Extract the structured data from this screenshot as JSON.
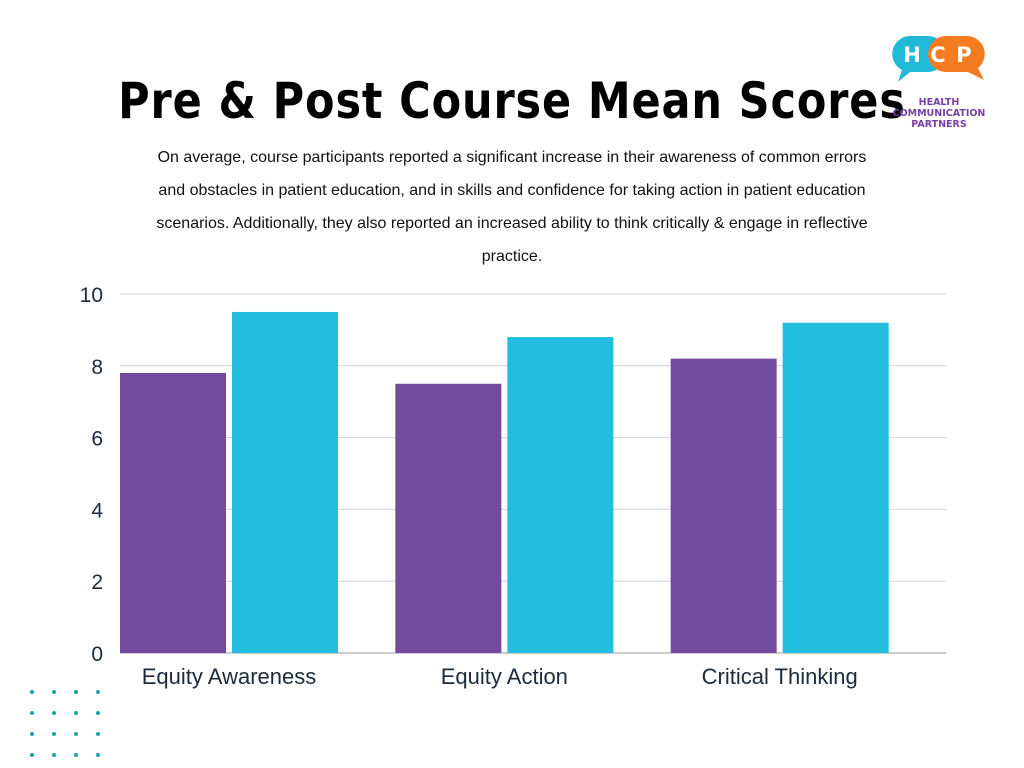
{
  "logo": {
    "letters": [
      "H",
      "C",
      "P"
    ],
    "lines": [
      "HEALTH",
      "COMMUNICATION",
      "PARTNERS"
    ],
    "colors": {
      "blue": "#22b8d8",
      "orange": "#f47b20",
      "purple": "#7a3fa3"
    }
  },
  "chart_data": {
    "type": "bar",
    "title": "Pre & Post Course Mean Scores",
    "subtitle": "On average, course participants reported a significant increase in their awareness of common errors and obstacles in patient education, and in skills and confidence for taking action in patient education scenarios. Additionally, they also reported an increased ability to think critically & engage in reflective practice.",
    "categories": [
      "Equity Awareness",
      "Equity Action",
      "Critical Thinking"
    ],
    "series": [
      {
        "values": [
          7.8,
          7.5,
          8.2
        ],
        "color": "#744a9e"
      },
      {
        "values": [
          9.5,
          8.8,
          9.2
        ],
        "color": "#23bde0"
      }
    ],
    "ylim": [
      0,
      10
    ],
    "yticks": [
      0,
      2,
      4,
      6,
      8,
      10
    ],
    "grid": true,
    "legend": "none"
  }
}
